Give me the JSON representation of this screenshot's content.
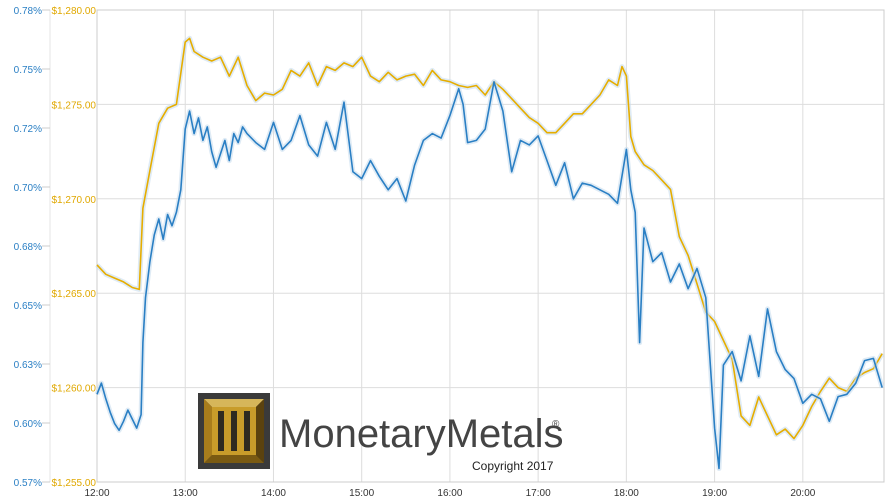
{
  "chart_data": {
    "type": "line",
    "title": "",
    "xlabel": "",
    "x_ticks": [
      "12:00",
      "13:00",
      "14:00",
      "15:00",
      "16:00",
      "17:00",
      "18:00",
      "19:00",
      "20:00"
    ],
    "y_left": {
      "ticks": [
        "0.78%",
        "0.75%",
        "0.72%",
        "0.70%",
        "0.68%",
        "0.65%",
        "0.63%",
        "0.60%",
        "0.57%"
      ],
      "ylim": [
        0.57,
        0.78
      ],
      "color": "#2a7fc4"
    },
    "y_right": {
      "ticks": [
        "$1,280.00",
        "$1,275.00",
        "$1,270.00",
        "$1,265.00",
        "$1,260.00",
        "$1,255.00"
      ],
      "ylim": [
        1255,
        1280
      ],
      "color": "#e6ad00"
    },
    "x_range": [
      12.0,
      20.92
    ],
    "grid": true,
    "series": [
      {
        "axis": "right",
        "color": "#e6ad00",
        "x": [
          12.0,
          12.1,
          12.2,
          12.3,
          12.4,
          12.48,
          12.52,
          12.6,
          12.7,
          12.8,
          12.9,
          13.0,
          13.05,
          13.1,
          13.2,
          13.3,
          13.4,
          13.5,
          13.6,
          13.7,
          13.8,
          13.9,
          14.0,
          14.1,
          14.2,
          14.3,
          14.4,
          14.5,
          14.6,
          14.7,
          14.8,
          14.9,
          15.0,
          15.1,
          15.2,
          15.3,
          15.4,
          15.5,
          15.6,
          15.7,
          15.8,
          15.9,
          16.0,
          16.1,
          16.2,
          16.3,
          16.4,
          16.5,
          16.6,
          16.7,
          16.8,
          16.9,
          17.0,
          17.1,
          17.2,
          17.3,
          17.4,
          17.5,
          17.6,
          17.7,
          17.8,
          17.9,
          17.95,
          18.0,
          18.05,
          18.1,
          18.2,
          18.3,
          18.4,
          18.5,
          18.6,
          18.7,
          18.8,
          18.9,
          19.0,
          19.1,
          19.2,
          19.3,
          19.4,
          19.5,
          19.6,
          19.7,
          19.8,
          19.9,
          20.0,
          20.1,
          20.2,
          20.3,
          20.4,
          20.5,
          20.6,
          20.7,
          20.8,
          20.9
        ],
        "y": [
          1266.5,
          1266.0,
          1265.8,
          1265.6,
          1265.3,
          1265.2,
          1269.5,
          1271.5,
          1274.0,
          1274.8,
          1275.0,
          1278.3,
          1278.5,
          1277.8,
          1277.5,
          1277.3,
          1277.5,
          1276.5,
          1277.5,
          1276.0,
          1275.2,
          1275.6,
          1275.5,
          1275.8,
          1276.8,
          1276.5,
          1277.2,
          1276.0,
          1277.0,
          1276.8,
          1277.2,
          1277.0,
          1277.5,
          1276.5,
          1276.2,
          1276.7,
          1276.3,
          1276.5,
          1276.6,
          1276.0,
          1276.8,
          1276.3,
          1276.2,
          1276.0,
          1275.9,
          1276.0,
          1275.5,
          1276.2,
          1275.8,
          1275.3,
          1274.8,
          1274.3,
          1274.0,
          1273.5,
          1273.5,
          1274.0,
          1274.5,
          1274.5,
          1275.0,
          1275.5,
          1276.3,
          1276.0,
          1277.0,
          1276.5,
          1273.3,
          1272.5,
          1271.8,
          1271.5,
          1271.0,
          1270.5,
          1268.0,
          1267.0,
          1265.5,
          1264.0,
          1263.5,
          1262.5,
          1261.5,
          1258.5,
          1258.0,
          1259.5,
          1258.5,
          1257.5,
          1257.8,
          1257.3,
          1258.0,
          1259.0,
          1259.8,
          1260.5,
          1260.0,
          1259.8,
          1260.5,
          1260.8,
          1261.0,
          1261.8
        ]
      },
      {
        "axis": "left",
        "color": "#2a7fc4",
        "x": [
          12.0,
          12.05,
          12.1,
          12.15,
          12.2,
          12.25,
          12.3,
          12.35,
          12.4,
          12.45,
          12.5,
          12.52,
          12.55,
          12.6,
          12.65,
          12.7,
          12.75,
          12.8,
          12.85,
          12.9,
          12.95,
          13.0,
          13.05,
          13.1,
          13.15,
          13.2,
          13.25,
          13.3,
          13.35,
          13.4,
          13.45,
          13.5,
          13.55,
          13.6,
          13.65,
          13.7,
          13.8,
          13.9,
          14.0,
          14.1,
          14.2,
          14.3,
          14.4,
          14.5,
          14.6,
          14.7,
          14.8,
          14.9,
          15.0,
          15.1,
          15.2,
          15.3,
          15.4,
          15.5,
          15.6,
          15.7,
          15.8,
          15.9,
          16.0,
          16.1,
          16.15,
          16.2,
          16.3,
          16.4,
          16.5,
          16.6,
          16.7,
          16.8,
          16.9,
          17.0,
          17.1,
          17.2,
          17.3,
          17.4,
          17.5,
          17.6,
          17.7,
          17.8,
          17.9,
          18.0,
          18.05,
          18.1,
          18.15,
          18.2,
          18.3,
          18.4,
          18.5,
          18.6,
          18.7,
          18.8,
          18.9,
          19.0,
          19.05,
          19.1,
          19.2,
          19.3,
          19.4,
          19.5,
          19.6,
          19.7,
          19.8,
          19.9,
          20.0,
          20.1,
          20.2,
          20.3,
          20.4,
          20.5,
          20.6,
          20.7,
          20.8,
          20.9
        ],
        "y": [
          0.609,
          0.614,
          0.607,
          0.601,
          0.596,
          0.593,
          0.597,
          0.602,
          0.598,
          0.594,
          0.6,
          0.632,
          0.652,
          0.668,
          0.68,
          0.687,
          0.678,
          0.689,
          0.684,
          0.69,
          0.7,
          0.727,
          0.735,
          0.725,
          0.732,
          0.722,
          0.728,
          0.717,
          0.71,
          0.716,
          0.722,
          0.713,
          0.725,
          0.721,
          0.728,
          0.725,
          0.721,
          0.718,
          0.73,
          0.718,
          0.722,
          0.733,
          0.72,
          0.715,
          0.73,
          0.718,
          0.739,
          0.708,
          0.705,
          0.713,
          0.706,
          0.7,
          0.705,
          0.695,
          0.711,
          0.722,
          0.725,
          0.723,
          0.733,
          0.745,
          0.738,
          0.721,
          0.722,
          0.727,
          0.748,
          0.735,
          0.708,
          0.722,
          0.72,
          0.724,
          0.713,
          0.702,
          0.712,
          0.696,
          0.703,
          0.702,
          0.7,
          0.698,
          0.694,
          0.718,
          0.7,
          0.69,
          0.632,
          0.683,
          0.668,
          0.672,
          0.659,
          0.667,
          0.656,
          0.665,
          0.652,
          0.594,
          0.576,
          0.622,
          0.628,
          0.615,
          0.635,
          0.617,
          0.647,
          0.628,
          0.62,
          0.616,
          0.605,
          0.609,
          0.607,
          0.597,
          0.608,
          0.609,
          0.614,
          0.624,
          0.625,
          0.612
        ]
      }
    ]
  },
  "logo": {
    "brand_text": "MonetaryMetals",
    "registered_mark": "®",
    "copyright": "Copyright 2017"
  }
}
